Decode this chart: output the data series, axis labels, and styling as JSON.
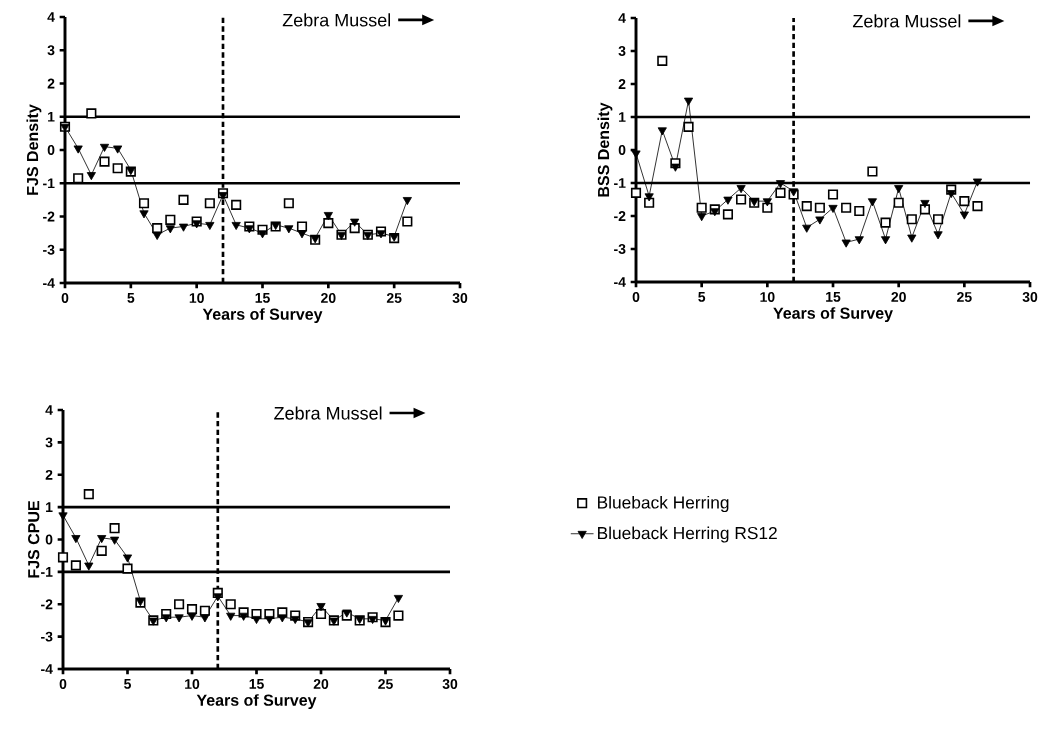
{
  "chart_data": [
    {
      "type": "scatter",
      "ylabel": "FJS Density",
      "xlabel": "Years of Survey",
      "annotations": [
        "Zebra Mussel"
      ],
      "xlim": [
        0,
        30
      ],
      "ylim": [
        -4,
        4
      ],
      "xticks": [
        0,
        5,
        10,
        15,
        20,
        25,
        30
      ],
      "yticks": [
        -4,
        -3,
        -2,
        -1,
        0,
        1,
        2,
        3,
        4
      ],
      "grid": false,
      "ref_lines": [
        {
          "axis": "y",
          "value": 1,
          "line_style": "solid"
        },
        {
          "axis": "y",
          "value": -1,
          "line_style": "solid"
        },
        {
          "axis": "x",
          "value": 12,
          "line_style": "dashed"
        }
      ],
      "x": [
        0,
        1,
        2,
        3,
        4,
        5,
        6,
        7,
        8,
        9,
        10,
        11,
        12,
        13,
        14,
        15,
        16,
        17,
        18,
        19,
        20,
        21,
        22,
        23,
        24,
        25,
        26
      ],
      "series": [
        {
          "marker": "square",
          "color": "#000000",
          "values": [
            0.7,
            -0.85,
            1.1,
            -0.35,
            -0.55,
            -0.65,
            -1.6,
            -2.35,
            -2.1,
            -1.5,
            -2.15,
            -1.6,
            -1.3,
            -1.65,
            -2.3,
            -2.4,
            -2.3,
            -1.6,
            -2.3,
            -2.7,
            -2.2,
            -2.55,
            -2.35,
            -2.55,
            -2.45,
            -2.65,
            -2.15
          ]
        },
        {
          "type": "line",
          "marker": "triangle",
          "color": "#000000",
          "values": [
            0.7,
            0.05,
            -0.75,
            0.1,
            0.05,
            -0.6,
            -1.9,
            -2.55,
            -2.35,
            -2.3,
            -2.2,
            -2.25,
            -1.35,
            -2.25,
            -2.35,
            -2.5,
            -2.25,
            -2.35,
            -2.5,
            -2.65,
            -1.95,
            -2.55,
            -2.15,
            -2.55,
            -2.5,
            -2.6,
            -1.5
          ]
        }
      ]
    },
    {
      "type": "scatter",
      "ylabel": "BSS Density",
      "xlabel": "Years of Survey",
      "annotations": [
        "Zebra Mussel"
      ],
      "xlim": [
        0,
        30
      ],
      "ylim": [
        -4,
        4
      ],
      "xticks": [
        0,
        5,
        10,
        15,
        20,
        25,
        30
      ],
      "yticks": [
        -4,
        -3,
        -2,
        -1,
        0,
        1,
        2,
        3,
        4
      ],
      "grid": false,
      "ref_lines": [
        {
          "axis": "y",
          "value": 1,
          "line_style": "solid"
        },
        {
          "axis": "y",
          "value": -1,
          "line_style": "solid"
        },
        {
          "axis": "x",
          "value": 12,
          "line_style": "dashed"
        }
      ],
      "x": [
        0,
        1,
        2,
        3,
        4,
        5,
        6,
        7,
        8,
        9,
        10,
        11,
        12,
        13,
        14,
        15,
        16,
        17,
        18,
        19,
        20,
        21,
        22,
        23,
        24,
        25,
        26
      ],
      "series": [
        {
          "marker": "square",
          "color": "#000000",
          "values": [
            -1.3,
            -1.6,
            2.7,
            -0.4,
            0.7,
            -1.75,
            -1.8,
            -1.95,
            -1.5,
            -1.6,
            -1.75,
            -1.3,
            -1.35,
            -1.7,
            -1.75,
            -1.35,
            -1.75,
            -1.85,
            -0.65,
            -2.2,
            -1.6,
            -2.1,
            -1.8,
            -2.1,
            -1.2,
            -1.55,
            -1.7
          ]
        },
        {
          "type": "line",
          "marker": "triangle",
          "color": "#000000",
          "values": [
            -0.1,
            -1.4,
            0.6,
            -0.5,
            1.5,
            -2.0,
            -1.85,
            -1.5,
            -1.15,
            -1.55,
            -1.55,
            -1.0,
            -1.25,
            -2.35,
            -2.1,
            -1.75,
            -2.8,
            -2.7,
            -1.55,
            -2.7,
            -1.15,
            -2.65,
            -1.6,
            -2.55,
            -1.3,
            -1.95,
            -0.95
          ]
        }
      ]
    },
    {
      "type": "scatter",
      "ylabel": "FJS CPUE",
      "xlabel": "Years of Survey",
      "annotations": [
        "Zebra Mussel"
      ],
      "xlim": [
        0,
        30
      ],
      "ylim": [
        -4,
        4
      ],
      "xticks": [
        0,
        5,
        10,
        15,
        20,
        25,
        30
      ],
      "yticks": [
        -4,
        -3,
        -2,
        -1,
        0,
        1,
        2,
        3,
        4
      ],
      "grid": false,
      "legend": "right",
      "ref_lines": [
        {
          "axis": "y",
          "value": 1,
          "line_style": "solid"
        },
        {
          "axis": "y",
          "value": -1,
          "line_style": "solid"
        },
        {
          "axis": "x",
          "value": 12,
          "line_style": "dashed"
        }
      ],
      "x": [
        0,
        1,
        2,
        3,
        4,
        5,
        6,
        7,
        8,
        9,
        10,
        11,
        12,
        13,
        14,
        15,
        16,
        17,
        18,
        19,
        20,
        21,
        22,
        23,
        24,
        25,
        26
      ],
      "series": [
        {
          "name": "Blueback Herring",
          "marker": "square",
          "color": "#000000",
          "values": [
            -0.55,
            -0.8,
            1.4,
            -0.35,
            0.35,
            -0.9,
            -1.95,
            -2.5,
            -2.3,
            -2.0,
            -2.15,
            -2.2,
            -1.65,
            -2.0,
            -2.25,
            -2.3,
            -2.3,
            -2.25,
            -2.35,
            -2.55,
            -2.3,
            -2.5,
            -2.35,
            -2.5,
            -2.4,
            -2.55,
            -2.35
          ]
        },
        {
          "name": "Blueback Herring RS12",
          "type": "line",
          "marker": "triangle",
          "color": "#000000",
          "values": [
            0.75,
            0.05,
            -0.8,
            0.05,
            0.0,
            -0.55,
            -1.9,
            -2.5,
            -2.4,
            -2.4,
            -2.35,
            -2.4,
            -1.75,
            -2.35,
            -2.35,
            -2.45,
            -2.45,
            -2.4,
            -2.45,
            -2.55,
            -2.05,
            -2.5,
            -2.25,
            -2.45,
            -2.45,
            -2.5,
            -1.8
          ]
        }
      ]
    }
  ]
}
